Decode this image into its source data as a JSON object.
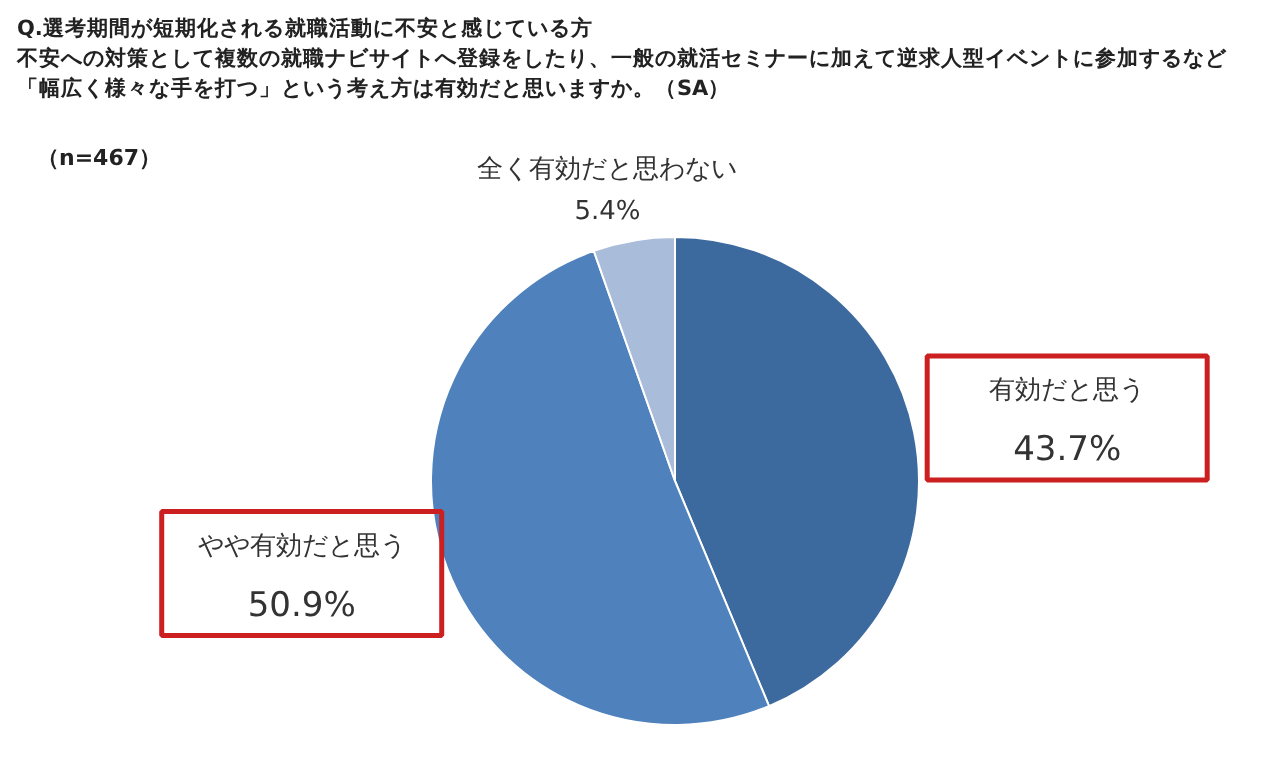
{
  "chart_data": {
    "type": "pie",
    "title": "Q.選考期間が短期化される就職活動に不安と感じている方",
    "subtitle": "不安への対策として複数の就職ナビサイトへ登録をしたり、一般の就活セミナーに加えて逆求人型イベントに参加するなど",
    "annotations": [
      "「幅広く様々な手を打つ」という考え方は有効だと思いますか。（SA）",
      "（n=467）"
    ],
    "categories": [
      "有効だと思う",
      "やや有効だと思う",
      "全く有効だと思わない"
    ],
    "values": [
      43.7,
      50.9,
      5.4
    ],
    "colors": [
      "#3d6a9e",
      "#4f81bd",
      "#a9bcd9"
    ],
    "value_labels": [
      "43.7%",
      "50.9%",
      "5.4%"
    ]
  }
}
